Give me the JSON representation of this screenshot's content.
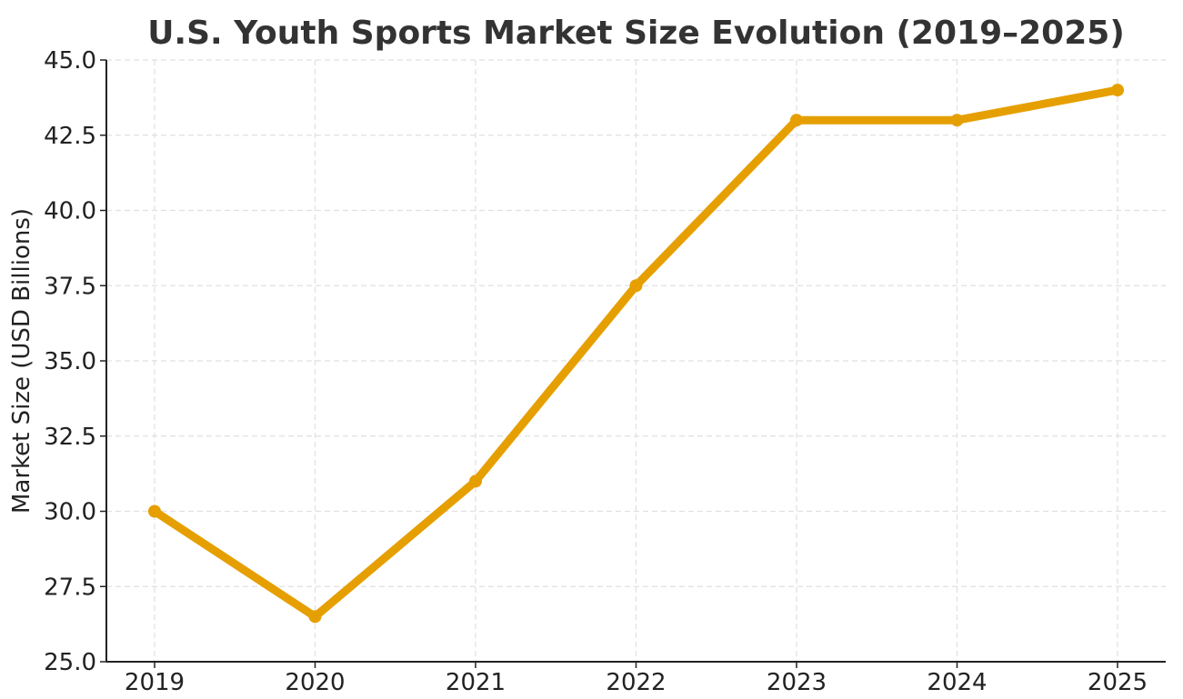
{
  "chart_data": {
    "type": "line",
    "title": "U.S. Youth Sports Market Size Evolution (2019–2025)",
    "xlabel": "",
    "ylabel": "Market Size (USD Billions)",
    "categories": [
      "2019",
      "2020",
      "2021",
      "2022",
      "2023",
      "2024",
      "2025"
    ],
    "series": [
      {
        "name": "Market Size",
        "values": [
          30.0,
          26.5,
          31.0,
          37.5,
          43.0,
          43.0,
          44.0
        ],
        "color": "#E69F00"
      }
    ],
    "ylim": [
      25.0,
      45.0
    ],
    "yticks": [
      "25.0",
      "27.5",
      "30.0",
      "32.5",
      "35.0",
      "37.5",
      "40.0",
      "42.5",
      "45.0"
    ],
    "grid": true,
    "legend": null
  }
}
